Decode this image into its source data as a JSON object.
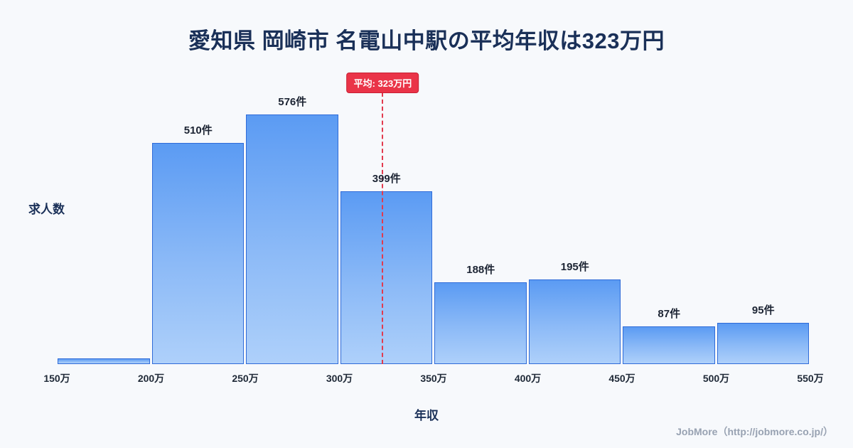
{
  "page": {
    "title": "愛知県 岡崎市 名電山中駅の平均年収は323万円",
    "footer": "JobMore（http://jobmore.co.jp/）"
  },
  "chart_data": {
    "type": "bar",
    "title": "愛知県 岡崎市 名電山中駅の平均年収は323万円",
    "xlabel": "年収",
    "ylabel": "求人数",
    "x_tick_labels": [
      "150万",
      "200万",
      "250万",
      "300万",
      "350万",
      "400万",
      "450万",
      "500万",
      "550万"
    ],
    "x_range_man_yen": [
      150,
      550
    ],
    "bin_width_man_yen": 50,
    "ylim": [
      0,
      650
    ],
    "grid": false,
    "legend": "none",
    "bins": [
      {
        "from": 150,
        "to": 200,
        "count": 13,
        "label": ""
      },
      {
        "from": 200,
        "to": 250,
        "count": 510,
        "label": "510件"
      },
      {
        "from": 250,
        "to": 300,
        "count": 576,
        "label": "576件"
      },
      {
        "from": 300,
        "to": 350,
        "count": 399,
        "label": "399件"
      },
      {
        "from": 350,
        "to": 400,
        "count": 188,
        "label": "188件"
      },
      {
        "from": 400,
        "to": 450,
        "count": 195,
        "label": "195件"
      },
      {
        "from": 450,
        "to": 500,
        "count": 87,
        "label": "87件"
      },
      {
        "from": 500,
        "to": 550,
        "count": 95,
        "label": "95件"
      }
    ],
    "average_man_yen": 323,
    "average_badge_label": "平均: 323万円",
    "colors": {
      "background": "#f7f9fc",
      "title_text": "#1a3058",
      "bar_fill_top": "#5b9bf3",
      "bar_fill_bottom": "#aed0fa",
      "bar_border": "#2f6bd8",
      "average_line": "#e23a4e",
      "average_badge_bg": "#ea3448",
      "footer_text": "#98a2b2"
    }
  }
}
